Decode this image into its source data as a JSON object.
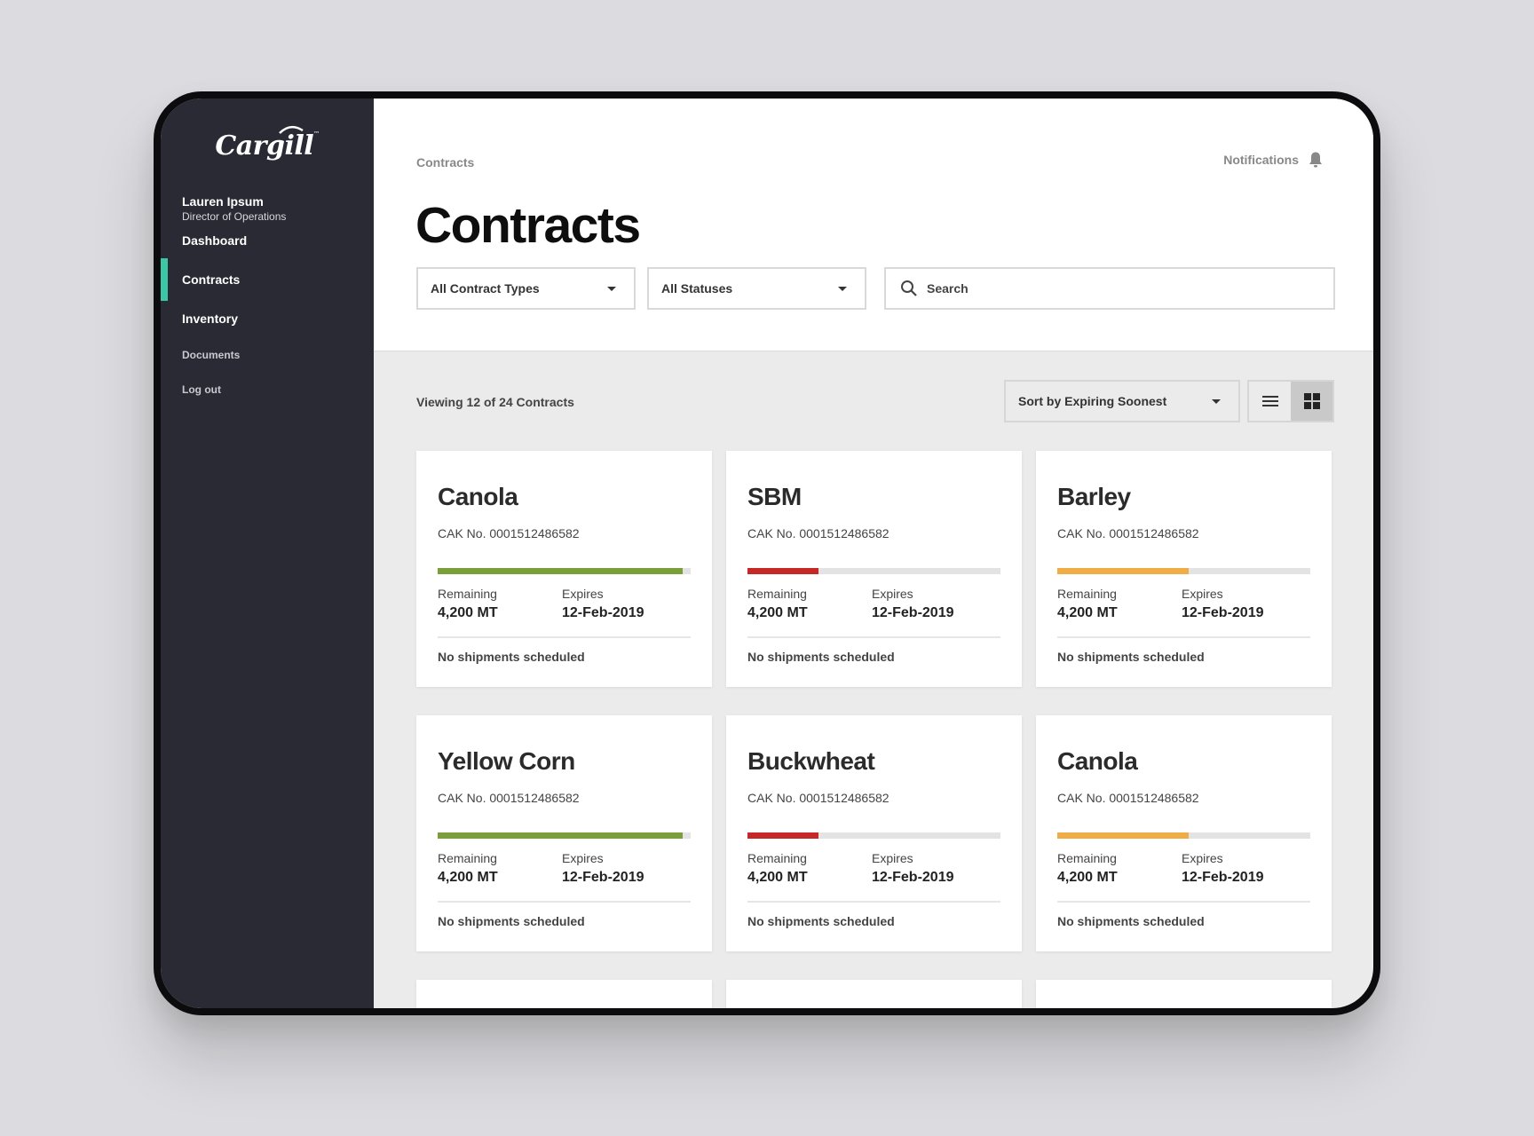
{
  "brand": {
    "logo_text": "Cargill",
    "logo_tm": "™"
  },
  "user": {
    "name": "Lauren Ipsum",
    "role": "Director of Operations"
  },
  "nav": {
    "dashboard": "Dashboard",
    "contracts": "Contracts",
    "inventory": "Inventory",
    "documents": "Documents",
    "logout": "Log out"
  },
  "header": {
    "breadcrumb": "Contracts",
    "notifications": "Notifications",
    "title": "Contracts"
  },
  "filters": {
    "contract_type": "All Contract Types",
    "status": "All Statuses",
    "search_placeholder": "Search"
  },
  "toolbar": {
    "viewing": "Viewing 12 of 24 Contracts",
    "sort": "Sort by Expiring Soonest",
    "active_view": "grid"
  },
  "colors": {
    "accent": "#3bc6a5",
    "good": "#7a9e3a",
    "warn": "#f0ad46",
    "bad": "#c62828"
  },
  "cards": [
    {
      "name": "Canola",
      "cak": "CAK No. 0001512486582",
      "progress": 0.97,
      "status": "good",
      "remaining_label": "Remaining",
      "remaining": "4,200 MT",
      "expires_label": "Expires",
      "expires": "12-Feb-2019",
      "shipments": "No shipments scheduled"
    },
    {
      "name": "SBM",
      "cak": "CAK No. 0001512486582",
      "progress": 0.28,
      "status": "bad",
      "remaining_label": "Remaining",
      "remaining": "4,200 MT",
      "expires_label": "Expires",
      "expires": "12-Feb-2019",
      "shipments": "No shipments scheduled"
    },
    {
      "name": "Barley",
      "cak": "CAK No. 0001512486582",
      "progress": 0.52,
      "status": "warn",
      "remaining_label": "Remaining",
      "remaining": "4,200 MT",
      "expires_label": "Expires",
      "expires": "12-Feb-2019",
      "shipments": "No shipments scheduled"
    },
    {
      "name": "Yellow Corn",
      "cak": "CAK No. 0001512486582",
      "progress": 0.97,
      "status": "good",
      "remaining_label": "Remaining",
      "remaining": "4,200 MT",
      "expires_label": "Expires",
      "expires": "12-Feb-2019",
      "shipments": "No shipments scheduled"
    },
    {
      "name": "Buckwheat",
      "cak": "CAK No. 0001512486582",
      "progress": 0.28,
      "status": "bad",
      "remaining_label": "Remaining",
      "remaining": "4,200 MT",
      "expires_label": "Expires",
      "expires": "12-Feb-2019",
      "shipments": "No shipments scheduled"
    },
    {
      "name": "Canola",
      "cak": "CAK No. 0001512486582",
      "progress": 0.52,
      "status": "warn",
      "remaining_label": "Remaining",
      "remaining": "4,200 MT",
      "expires_label": "Expires",
      "expires": "12-Feb-2019",
      "shipments": "No shipments scheduled"
    }
  ]
}
